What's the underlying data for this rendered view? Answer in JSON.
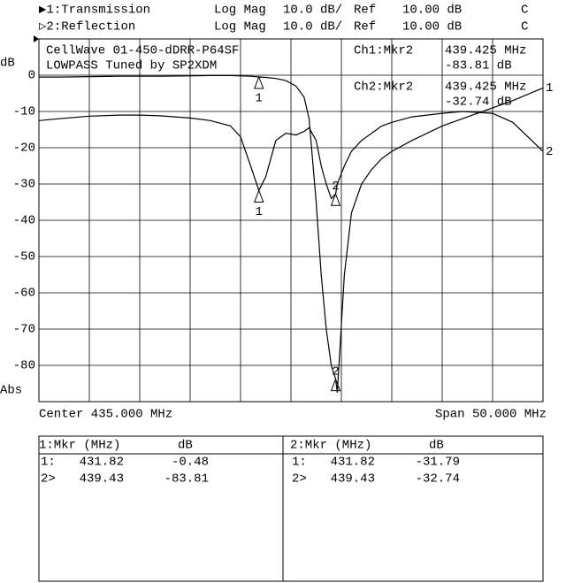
{
  "header": {
    "lines": [
      {
        "channel": "▶1:Transmission",
        "format": "Log Mag",
        "scale": "10.0 dB/",
        "ref": "Ref",
        "refval": "10.00 dB",
        "flag": "C"
      },
      {
        "channel": "▷2:Reflection",
        "format": "Log Mag",
        "scale": "10.0 dB/",
        "ref": "Ref",
        "refval": "10.00 dB",
        "flag": "C"
      }
    ]
  },
  "chart_data": {
    "type": "line",
    "title_lines": [
      "CellWave 01-450-dDRR-P64SF",
      "LOWPASS Tuned by SP2XDM"
    ],
    "ylabel": "dB",
    "ylabel_bottom": "Abs",
    "center": "Center 435.000 MHz",
    "span": "Span 50.000 MHz",
    "readouts": [
      {
        "label": "Ch1:Mkr2",
        "freq": "439.425 MHz",
        "value": "-83.81 dB"
      },
      {
        "label": "Ch2:Mkr2",
        "freq": "439.425 MHz",
        "value": "-32.74 dB"
      }
    ],
    "x": [
      410,
      412,
      415,
      418,
      420,
      422,
      425,
      427,
      429,
      430,
      431,
      431.82,
      432.5,
      433.5,
      434.5,
      435.5,
      436.3,
      436.8,
      437.5,
      438,
      438.5,
      439,
      439.43,
      439.6,
      440.3,
      441,
      442,
      443,
      444,
      445,
      447,
      450,
      452,
      455,
      457,
      460
    ],
    "xlim": [
      410,
      460
    ],
    "ylim": [
      -90,
      10
    ],
    "yticks": [
      0,
      -10,
      -20,
      -30,
      -40,
      -50,
      -60,
      -70,
      -80
    ],
    "grid": true,
    "series": [
      {
        "name": "1",
        "color": "#000000",
        "values": [
          -0.5,
          -0.5,
          -0.4,
          -0.3,
          -0.3,
          -0.3,
          -0.2,
          -0.1,
          -0.1,
          -0.2,
          -0.3,
          -0.48,
          -0.6,
          -0.9,
          -1.5,
          -3,
          -6,
          -12,
          -35,
          -55,
          -70,
          -80,
          -83.81,
          -87.5,
          -55,
          -38,
          -30,
          -26,
          -23,
          -21,
          -18,
          -14,
          -12,
          -9,
          -7,
          -3.5
        ],
        "markers": [
          {
            "label": "1",
            "row": "1:",
            "x": 431.82,
            "y": -0.48
          },
          {
            "label": "2",
            "row": "2>",
            "x": 439.43,
            "y": -83.81
          }
        ]
      },
      {
        "name": "2",
        "color": "#000000",
        "values": [
          -12.5,
          -12,
          -11.3,
          -11,
          -11,
          -11.2,
          -11.8,
          -12.5,
          -14,
          -17,
          -25,
          -31.79,
          -28,
          -18,
          -16,
          -16.5,
          -15.5,
          -14.5,
          -18,
          -25,
          -30,
          -34,
          -32.74,
          -30,
          -25,
          -21,
          -18,
          -16,
          -14,
          -13,
          -11.5,
          -10.5,
          -10,
          -10.5,
          -13,
          -21
        ],
        "markers": [
          {
            "label": "1",
            "row": "1:",
            "x": 431.82,
            "y": -31.79
          },
          {
            "label": "2",
            "row": "2>",
            "x": 439.43,
            "y": -32.74
          }
        ]
      }
    ]
  },
  "tables": [
    {
      "title": "1:Mkr (MHz)",
      "unit": "dB"
    },
    {
      "title": "2:Mkr (MHz)",
      "unit": "dB"
    }
  ]
}
